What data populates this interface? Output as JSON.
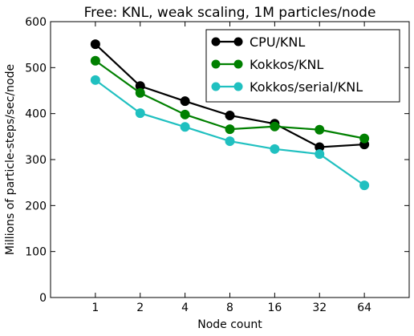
{
  "chart_data": {
    "type": "line",
    "title": "Free: KNL, weak scaling, 1M particles/node",
    "xlabel": "Node count",
    "ylabel": "Millions of particle-steps/sec/node",
    "categories": [
      "1",
      "2",
      "4",
      "8",
      "16",
      "32",
      "64"
    ],
    "ylim": [
      0,
      600
    ],
    "yticks": [
      0,
      100,
      200,
      300,
      400,
      500,
      600
    ],
    "grid": false,
    "legend_position": "top-right",
    "series": [
      {
        "name": "CPU/KNL",
        "color": "#000000",
        "values": [
          551,
          460,
          427,
          396,
          378,
          327,
          333
        ]
      },
      {
        "name": "Kokkos/KNL",
        "color": "#008000",
        "values": [
          515,
          445,
          398,
          366,
          372,
          365,
          346
        ]
      },
      {
        "name": "Kokkos/serial/KNL",
        "color": "#20c0c0",
        "values": [
          473,
          401,
          371,
          340,
          323,
          312,
          244
        ]
      }
    ]
  }
}
